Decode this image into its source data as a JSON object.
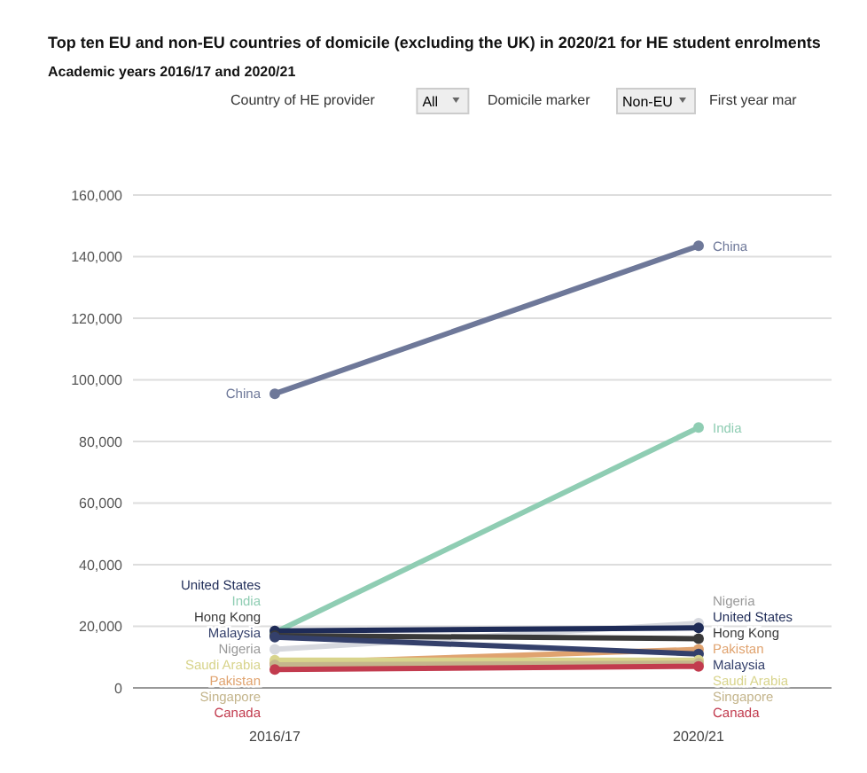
{
  "chart_data": {
    "type": "line",
    "title": "Top ten EU and non-EU countries of domicile (excluding the UK) in 2020/21 for HE student enrolments",
    "subtitle": "Academic years 2016/17 and 2020/21",
    "annotations": [
      "Country of HE provider",
      "All",
      "Domicile marker",
      "Non-EU",
      "First year mar"
    ],
    "categories": [
      "2016/17",
      "2020/21"
    ],
    "series": [
      {
        "name": "China",
        "color": "#6e7899",
        "values": [
          95500,
          143500
        ]
      },
      {
        "name": "India",
        "color": "#8fcdb3",
        "values": [
          18000,
          84500
        ]
      },
      {
        "name": "Nigeria",
        "color": "#d6d8de",
        "values": [
          12500,
          21000
        ]
      },
      {
        "name": "United States",
        "color": "#1e2b57",
        "values": [
          18500,
          19500
        ]
      },
      {
        "name": "Hong Kong",
        "color": "#3a3a3a",
        "values": [
          17000,
          16000
        ]
      },
      {
        "name": "Pakistan",
        "color": "#e0a36f",
        "values": [
          8000,
          12500
        ]
      },
      {
        "name": "Malaysia",
        "color": "#34406b",
        "values": [
          16500,
          11000
        ]
      },
      {
        "name": "Saudi Arabia",
        "color": "#d8d48c",
        "values": [
          9000,
          9000
        ]
      },
      {
        "name": "Singapore",
        "color": "#c4b58c",
        "values": [
          7500,
          8000
        ]
      },
      {
        "name": "Canada",
        "color": "#c23b4e",
        "values": [
          6000,
          7000
        ]
      }
    ],
    "ylim": [
      0,
      160000
    ],
    "yticks": [
      {
        "value": 0,
        "label": "0"
      },
      {
        "value": 20000,
        "label": "20,000"
      },
      {
        "value": 40000,
        "label": "40,000"
      },
      {
        "value": 60000,
        "label": "60,000"
      },
      {
        "value": 80000,
        "label": "80,000"
      },
      {
        "value": 100000,
        "label": "100,000"
      },
      {
        "value": 120000,
        "label": "120,000"
      },
      {
        "value": 140000,
        "label": "140,000"
      },
      {
        "value": 160000,
        "label": "160,000"
      }
    ],
    "grid": "y",
    "legend": false,
    "marker": "circle",
    "line_style": "solid"
  }
}
